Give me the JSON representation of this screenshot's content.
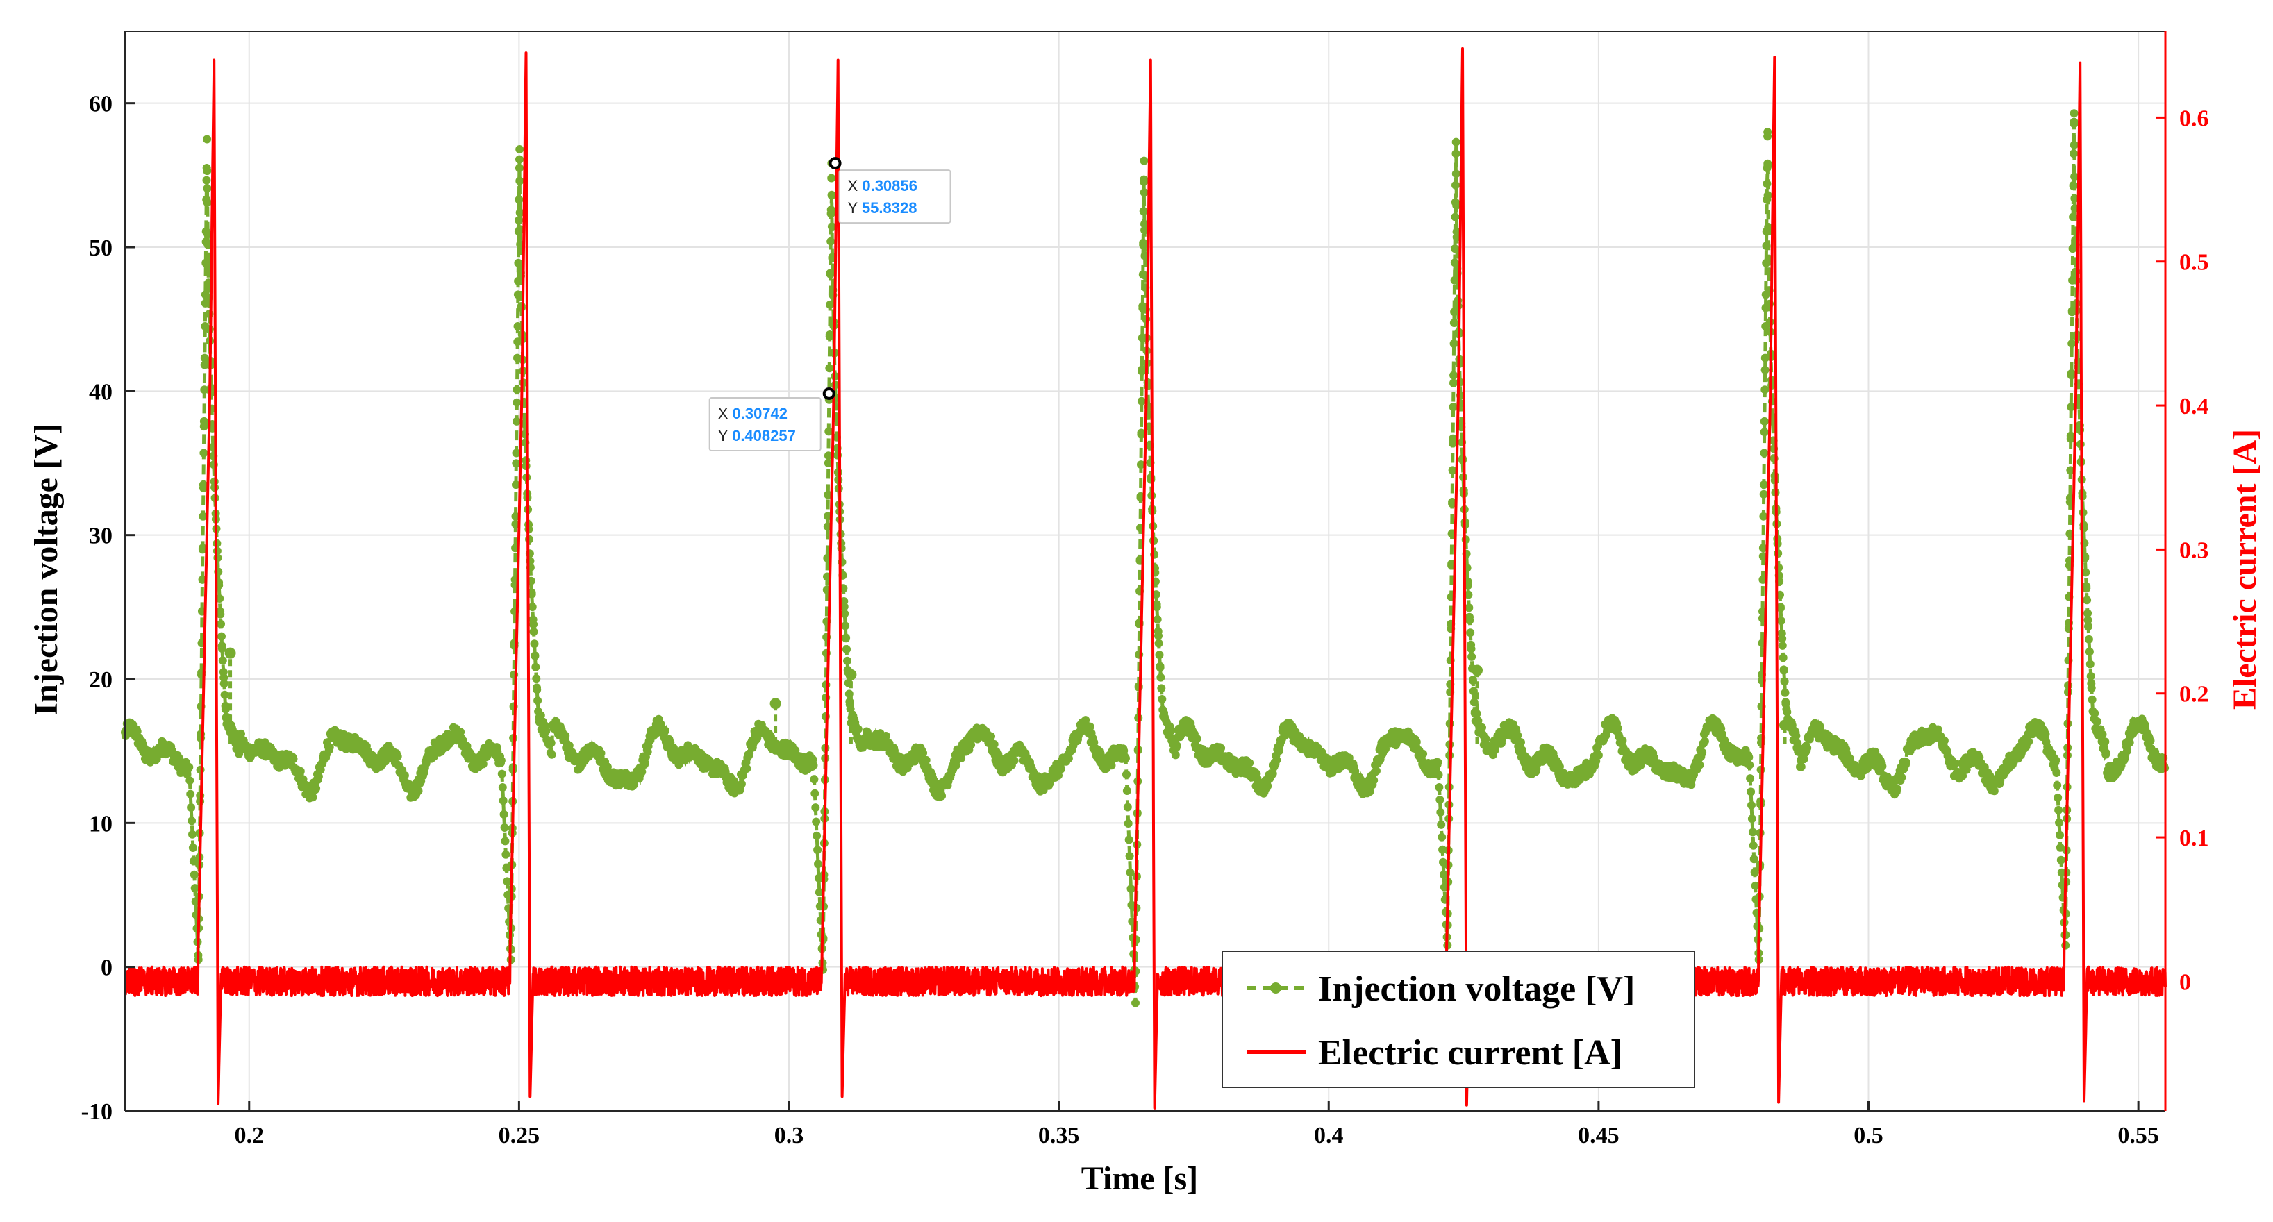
{
  "chart_data": {
    "type": "line",
    "title": "",
    "xlabel": "Time [s]",
    "ylabel_left": "Injection voltage [V]",
    "ylabel_right": "Electric current [A]",
    "xlim": [
      0.177,
      0.555
    ],
    "ylim_left": [
      -10,
      65
    ],
    "ylim_right": [
      -0.09,
      0.66
    ],
    "xticks": [
      0.2,
      0.25,
      0.3,
      0.35,
      0.4,
      0.45,
      0.5,
      0.55
    ],
    "xtick_labels": [
      "0.2",
      "0.25",
      "0.3",
      "0.35",
      "0.4",
      "0.45",
      "0.5",
      "0.55"
    ],
    "yticks_left": [
      -10,
      0,
      10,
      20,
      30,
      40,
      50,
      60
    ],
    "ytick_labels_left": [
      "-10",
      "0",
      "10",
      "20",
      "30",
      "40",
      "50",
      "60"
    ],
    "yticks_right": [
      0,
      0.1,
      0.2,
      0.3,
      0.4,
      0.5,
      0.6
    ],
    "ytick_labels_right": [
      "0",
      "0.1",
      "0.2",
      "0.3",
      "0.4",
      "0.5",
      "0.6"
    ],
    "grid": true,
    "legend_position": "bottom-center",
    "series": [
      {
        "name": "Injection voltage [V]",
        "axis": "left",
        "color": "#77ac30",
        "style": "dashed-with-dot-markers",
        "baseline": 14.5,
        "pulse_times": [
          0.1922,
          0.2501,
          0.3079,
          0.3658,
          0.4236,
          0.4813,
          0.5381
        ],
        "pulse_peaks": [
          57.5,
          56.8,
          55.83,
          56.0,
          57.3,
          58.0,
          59.3
        ],
        "undershoot_values": [
          0.5,
          0.5,
          -0.2,
          -2.5,
          1.5,
          0.5,
          1.5
        ],
        "spikes": [
          {
            "x": 0.1965,
            "y": 21.8
          },
          {
            "x": 0.2975,
            "y": 18.3
          },
          {
            "x": 0.3115,
            "y": 20.3
          },
          {
            "x": 0.4275,
            "y": 20.6
          },
          {
            "x": 0.4845,
            "y": 16.8
          }
        ]
      },
      {
        "name": "Electric current [A]",
        "axis": "right",
        "color": "#ff0000",
        "style": "solid",
        "baseline": 0.0,
        "noise_amplitude": 0.01,
        "pulse_times": [
          0.1935,
          0.2513,
          0.3091,
          0.367,
          0.4248,
          0.4826,
          0.5392
        ],
        "pulse_peaks": [
          0.64,
          0.645,
          0.64,
          0.64,
          0.648,
          0.642,
          0.638
        ],
        "pulse_troughs": [
          -0.085,
          -0.08,
          -0.08,
          -0.088,
          -0.086,
          -0.084,
          -0.083
        ]
      }
    ],
    "datatips": [
      {
        "x_label": "X",
        "x_value": "0.30856",
        "y_label": "Y",
        "y_value": "55.8328",
        "x": 0.30856,
        "y": 55.8328,
        "axis": "left"
      },
      {
        "x_label": "X",
        "x_value": "0.30742",
        "y_label": "Y",
        "y_value": "0.408257",
        "x": 0.30742,
        "y": 0.408257,
        "axis": "right"
      }
    ]
  }
}
